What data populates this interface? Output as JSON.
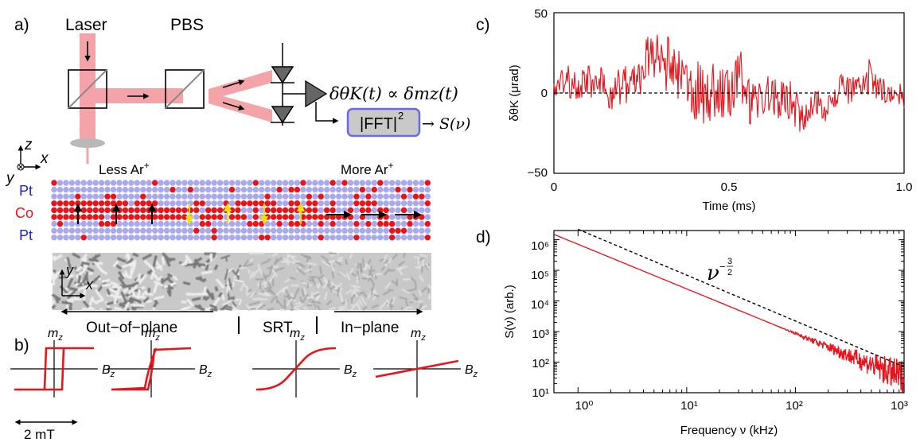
{
  "panel_a": {
    "label": "a)",
    "laser": "Laser",
    "pbs": "PBS",
    "kerr_formula": "δθK(t) ∝ δmz(t)",
    "fft": "|FFT|",
    "fft_sup": "2",
    "spectrum": "→ S(ν)",
    "axes_z": "z",
    "axes_x": "x",
    "axes_y": "y",
    "less_ar": "Less Ar",
    "more_ar": "More Ar",
    "ion_sup": "+",
    "layer_top": "Pt",
    "layer_mid": "Co",
    "layer_bot": "Pt",
    "img_y": "y",
    "img_x": "x",
    "region_left": "Out−of−plane",
    "region_mid": "SRT",
    "region_right": "In−plane"
  },
  "panel_b": {
    "label": "b)",
    "ylabel": "m",
    "ysub": "z",
    "xlabel": "B",
    "xsub": "z",
    "scale": "2 mT",
    "loops": [
      {
        "kind": "square-wide"
      },
      {
        "kind": "square-narrow"
      },
      {
        "kind": "tilted"
      },
      {
        "kind": "linear"
      }
    ]
  },
  "panel_c": {
    "label": "c)",
    "chart_data": {
      "type": "line",
      "title": "",
      "xlabel": "Time (ms)",
      "ylabel": "δθK (μrad)",
      "xlim": [
        0,
        1.0
      ],
      "ylim": [
        -50,
        50
      ],
      "xticks": [
        "0",
        "0.5",
        "1.0"
      ],
      "yticks": [
        "−50",
        "0",
        "50"
      ],
      "series": [
        {
          "color": "#e8141c",
          "description": "noise trace fluctuating about 0 with amplitude ~±25 μrad"
        }
      ],
      "reference_line": {
        "y": 0,
        "style": "dashed"
      }
    }
  },
  "panel_d": {
    "label": "d)",
    "power_law": "ν",
    "exp_minus": "−",
    "exp_num": "3",
    "exp_den": "2",
    "chart_data": {
      "type": "line",
      "title": "",
      "xlabel": "Frequency ν (kHz)",
      "ylabel": "S(ν) (arb.)",
      "xscale": "log",
      "yscale": "log",
      "xlim": [
        0.6,
        1000
      ],
      "ylim": [
        10,
        2000000
      ],
      "xticks": [
        "10⁰",
        "10¹",
        "10²",
        "10³"
      ],
      "yticks": [
        "10¹",
        "10²",
        "10³",
        "10⁴",
        "10⁵",
        "10⁶"
      ],
      "series": [
        {
          "color": "#e8141c",
          "x": [
            0.6,
            1000
          ],
          "y": [
            1500000,
            30
          ]
        },
        {
          "color": "#000000",
          "style": "dashed",
          "x": [
            1.0,
            1000
          ],
          "y": [
            2200000,
            70
          ]
        }
      ]
    }
  }
}
